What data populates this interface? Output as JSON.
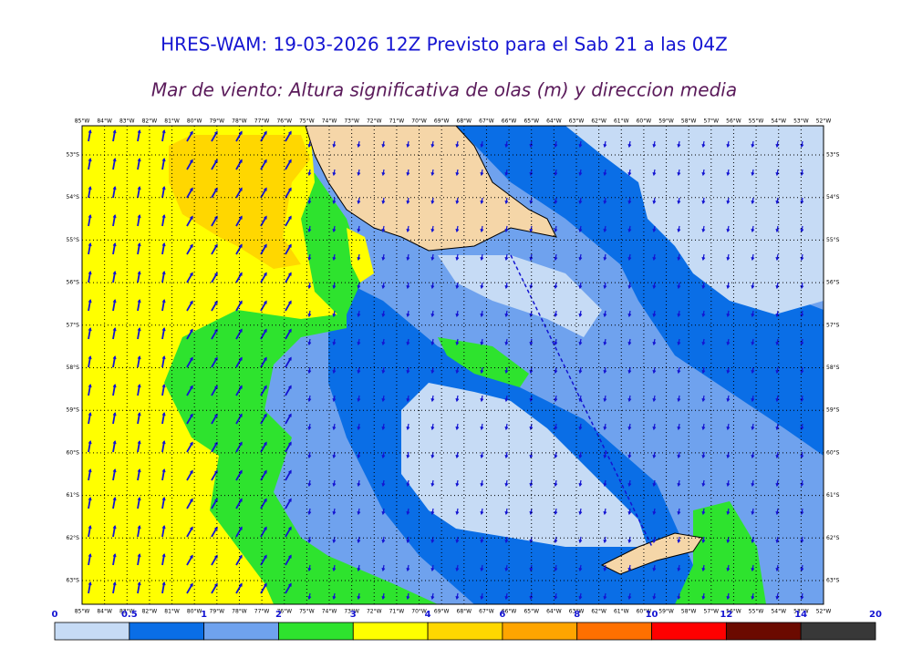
{
  "header": {
    "title": "HRES-WAM: 19-03-2026 12Z Previsto para el Sab 21 a las 04Z",
    "subtitle": "Mar de viento: Altura significativa de olas (m) y direccion media"
  },
  "map": {
    "lon_labels": [
      "85°W",
      "84°W",
      "83°W",
      "82°W",
      "81°W",
      "80°W",
      "79°W",
      "78°W",
      "77°W",
      "76°W",
      "75°W",
      "74°W",
      "73°W",
      "72°W",
      "71°W",
      "70°W",
      "69°W",
      "68°W",
      "67°W",
      "66°W",
      "65°W",
      "64°W",
      "63°W",
      "62°W",
      "61°W",
      "60°W",
      "59°W",
      "58°W",
      "57°W",
      "56°W",
      "55°W",
      "54°W",
      "53°W",
      "52°W"
    ],
    "lat_labels": [
      "53°S",
      "54°S",
      "55°S",
      "56°S",
      "57°S",
      "58°S",
      "59°S",
      "60°S",
      "61°S",
      "62°S",
      "63°S"
    ]
  },
  "colorbar": {
    "ticks": [
      0,
      0.5,
      1,
      2,
      3,
      4,
      6,
      8,
      10,
      12,
      14,
      20
    ],
    "colors": [
      "#c6dbf5",
      "#0a6ee6",
      "#6fa2ee",
      "#2ee32e",
      "#ffff00",
      "#ffd700",
      "#ffa500",
      "#ff7000",
      "#ff0000",
      "#6b0a00",
      "#383838"
    ]
  }
}
